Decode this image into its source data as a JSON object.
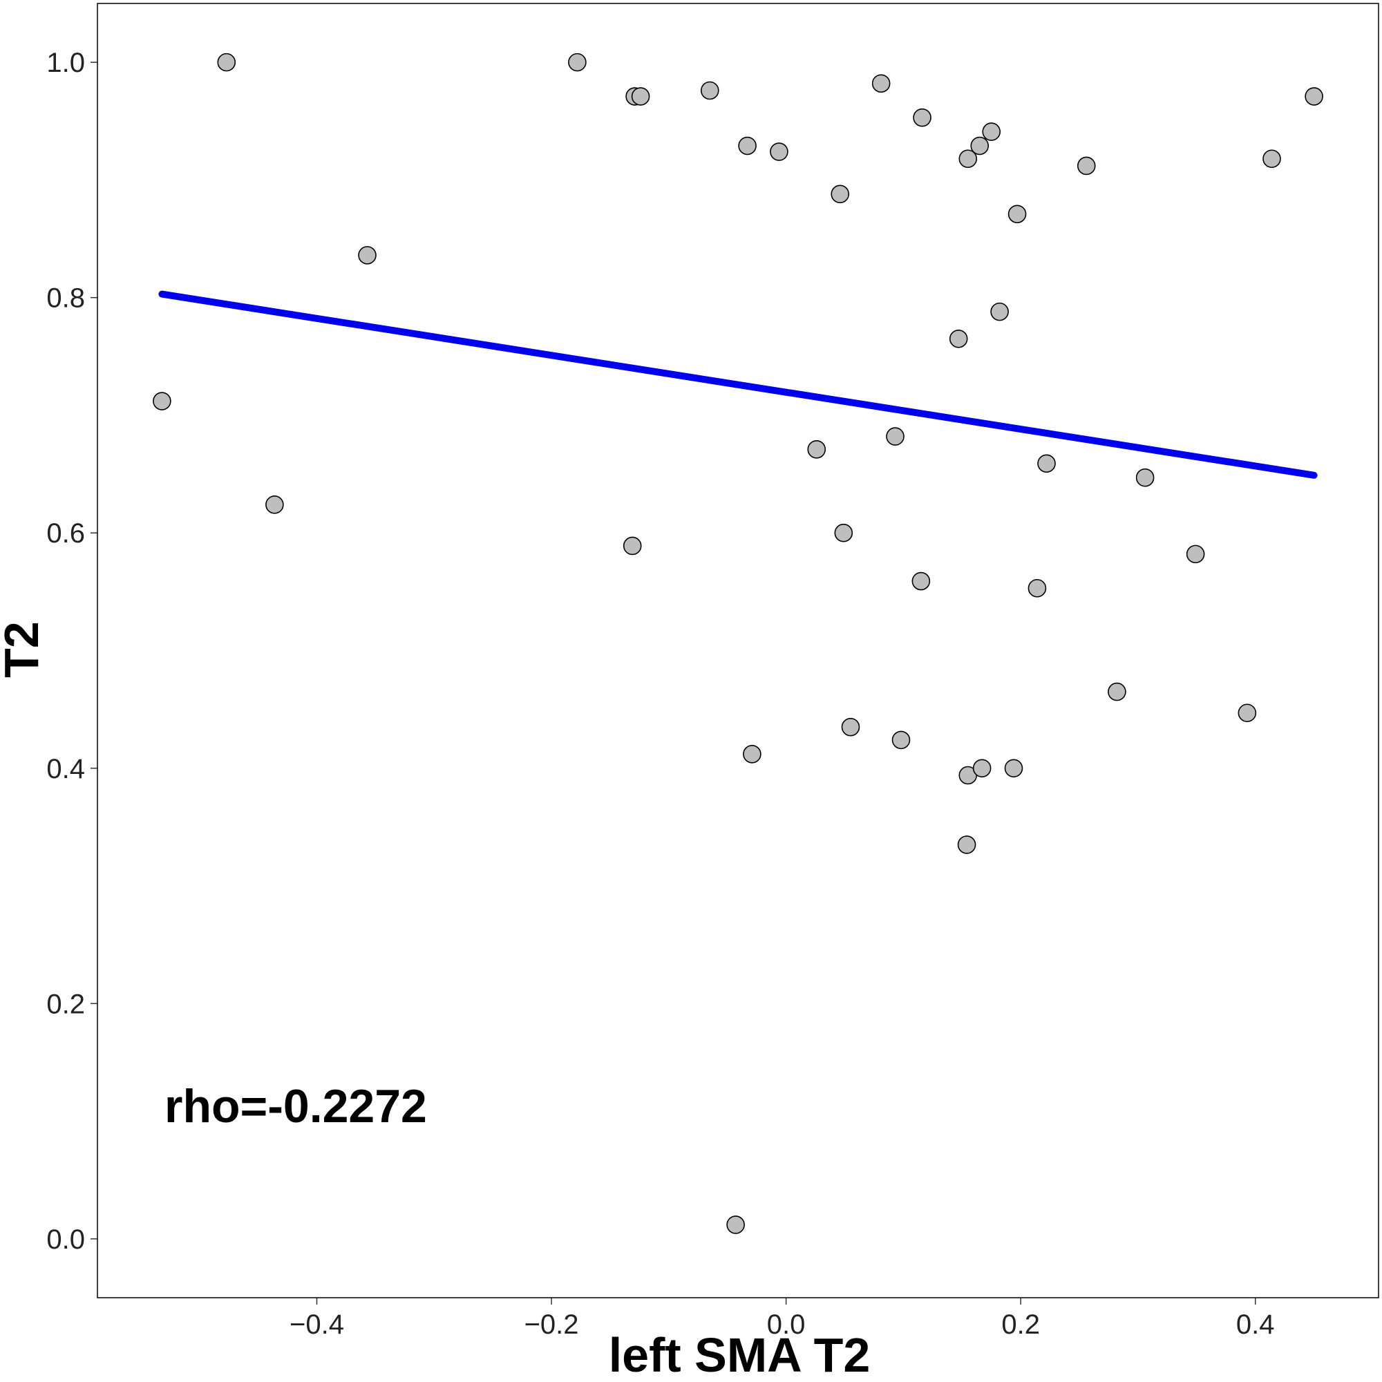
{
  "chart_data": {
    "type": "scatter",
    "xlabel": "left SMA T2",
    "ylabel": "T2",
    "xlim": [
      -0.587,
      0.505
    ],
    "ylim": [
      -0.05,
      1.05
    ],
    "xticks": [
      {
        "value": -0.4,
        "label": "−0.4"
      },
      {
        "value": -0.2,
        "label": "−0.2"
      },
      {
        "value": 0.0,
        "label": "0.0"
      },
      {
        "value": 0.2,
        "label": "0.2"
      },
      {
        "value": 0.4,
        "label": "0.4"
      }
    ],
    "yticks": [
      {
        "value": 0.0,
        "label": "0.0"
      },
      {
        "value": 0.2,
        "label": "0.2"
      },
      {
        "value": 0.4,
        "label": "0.4"
      },
      {
        "value": 0.6,
        "label": "0.6"
      },
      {
        "value": 0.8,
        "label": "0.8"
      },
      {
        "value": 1.0,
        "label": "1.0"
      }
    ],
    "grid": false,
    "point_color": "#bebebe",
    "line_color": "#0000ee",
    "points": [
      {
        "x": -0.532,
        "y": 0.712
      },
      {
        "x": -0.477,
        "y": 1.0
      },
      {
        "x": -0.436,
        "y": 0.624
      },
      {
        "x": -0.357,
        "y": 0.836
      },
      {
        "x": -0.178,
        "y": 1.0
      },
      {
        "x": -0.129,
        "y": 0.971
      },
      {
        "x": -0.124,
        "y": 0.971
      },
      {
        "x": -0.131,
        "y": 0.589
      },
      {
        "x": -0.065,
        "y": 0.976
      },
      {
        "x": -0.033,
        "y": 0.929
      },
      {
        "x": -0.029,
        "y": 0.412
      },
      {
        "x": -0.043,
        "y": 0.012
      },
      {
        "x": -0.006,
        "y": 0.924
      },
      {
        "x": 0.026,
        "y": 0.671
      },
      {
        "x": 0.046,
        "y": 0.888
      },
      {
        "x": 0.049,
        "y": 0.6
      },
      {
        "x": 0.055,
        "y": 0.435
      },
      {
        "x": 0.081,
        "y": 0.982
      },
      {
        "x": 0.093,
        "y": 0.682
      },
      {
        "x": 0.098,
        "y": 0.424
      },
      {
        "x": 0.116,
        "y": 0.953
      },
      {
        "x": 0.115,
        "y": 0.559
      },
      {
        "x": 0.147,
        "y": 0.765
      },
      {
        "x": 0.155,
        "y": 0.918
      },
      {
        "x": 0.155,
        "y": 0.394
      },
      {
        "x": 0.154,
        "y": 0.335
      },
      {
        "x": 0.165,
        "y": 0.929
      },
      {
        "x": 0.167,
        "y": 0.4
      },
      {
        "x": 0.175,
        "y": 0.941
      },
      {
        "x": 0.182,
        "y": 0.788
      },
      {
        "x": 0.194,
        "y": 0.4
      },
      {
        "x": 0.197,
        "y": 0.871
      },
      {
        "x": 0.214,
        "y": 0.553
      },
      {
        "x": 0.222,
        "y": 0.659
      },
      {
        "x": 0.256,
        "y": 0.912
      },
      {
        "x": 0.282,
        "y": 0.465
      },
      {
        "x": 0.306,
        "y": 0.647
      },
      {
        "x": 0.349,
        "y": 0.582
      },
      {
        "x": 0.393,
        "y": 0.447
      },
      {
        "x": 0.414,
        "y": 0.918
      },
      {
        "x": 0.45,
        "y": 0.971
      }
    ],
    "trendline": {
      "x": [
        -0.532,
        0.45
      ],
      "y": [
        0.803,
        0.649
      ]
    },
    "annotation": "rho=-0.2272"
  }
}
